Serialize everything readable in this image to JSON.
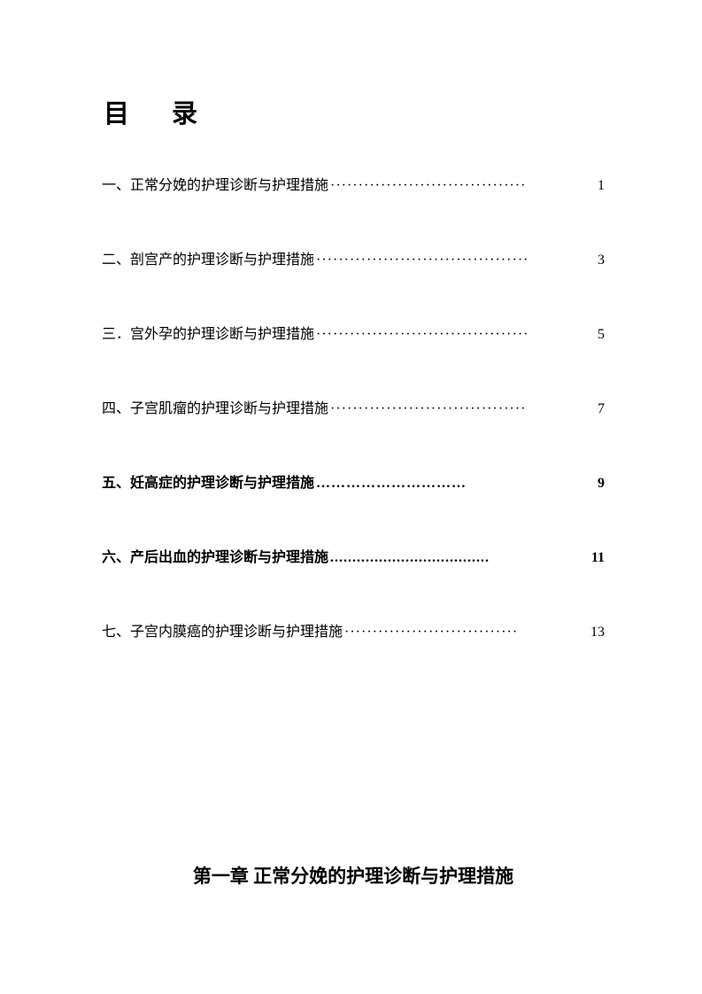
{
  "title": "目录",
  "toc": {
    "entries": [
      {
        "label": "一、正常分娩的护理诊断与护理措施",
        "leader": "···································",
        "page": "1",
        "bold": false
      },
      {
        "label": "二、剖宫产的护理诊断与护理措施",
        "leader": "······································",
        "page": "3",
        "bold": false
      },
      {
        "label": "三．宫外孕的护理诊断与护理措施",
        "leader": "······································",
        "page": "5",
        "bold": false
      },
      {
        "label": "四、子宫肌瘤的护理诊断与护理措施",
        "leader": "···································",
        "page": "7",
        "bold": false
      },
      {
        "label": "五、妊高症的护理诊断与护理措施",
        "leader": "…………………………",
        "page": "9",
        "bold": true
      },
      {
        "label": "六、产后出血的护理诊断与护理措施",
        "leader": "....................................",
        "page": "11",
        "bold": true
      },
      {
        "label": "七、子宫内膜癌的护理诊断与护理措施",
        "leader": "·······························",
        "page": "13",
        "bold": false
      }
    ]
  },
  "chapter_heading": "第一章  正常分娩的护理诊断与护理措施"
}
